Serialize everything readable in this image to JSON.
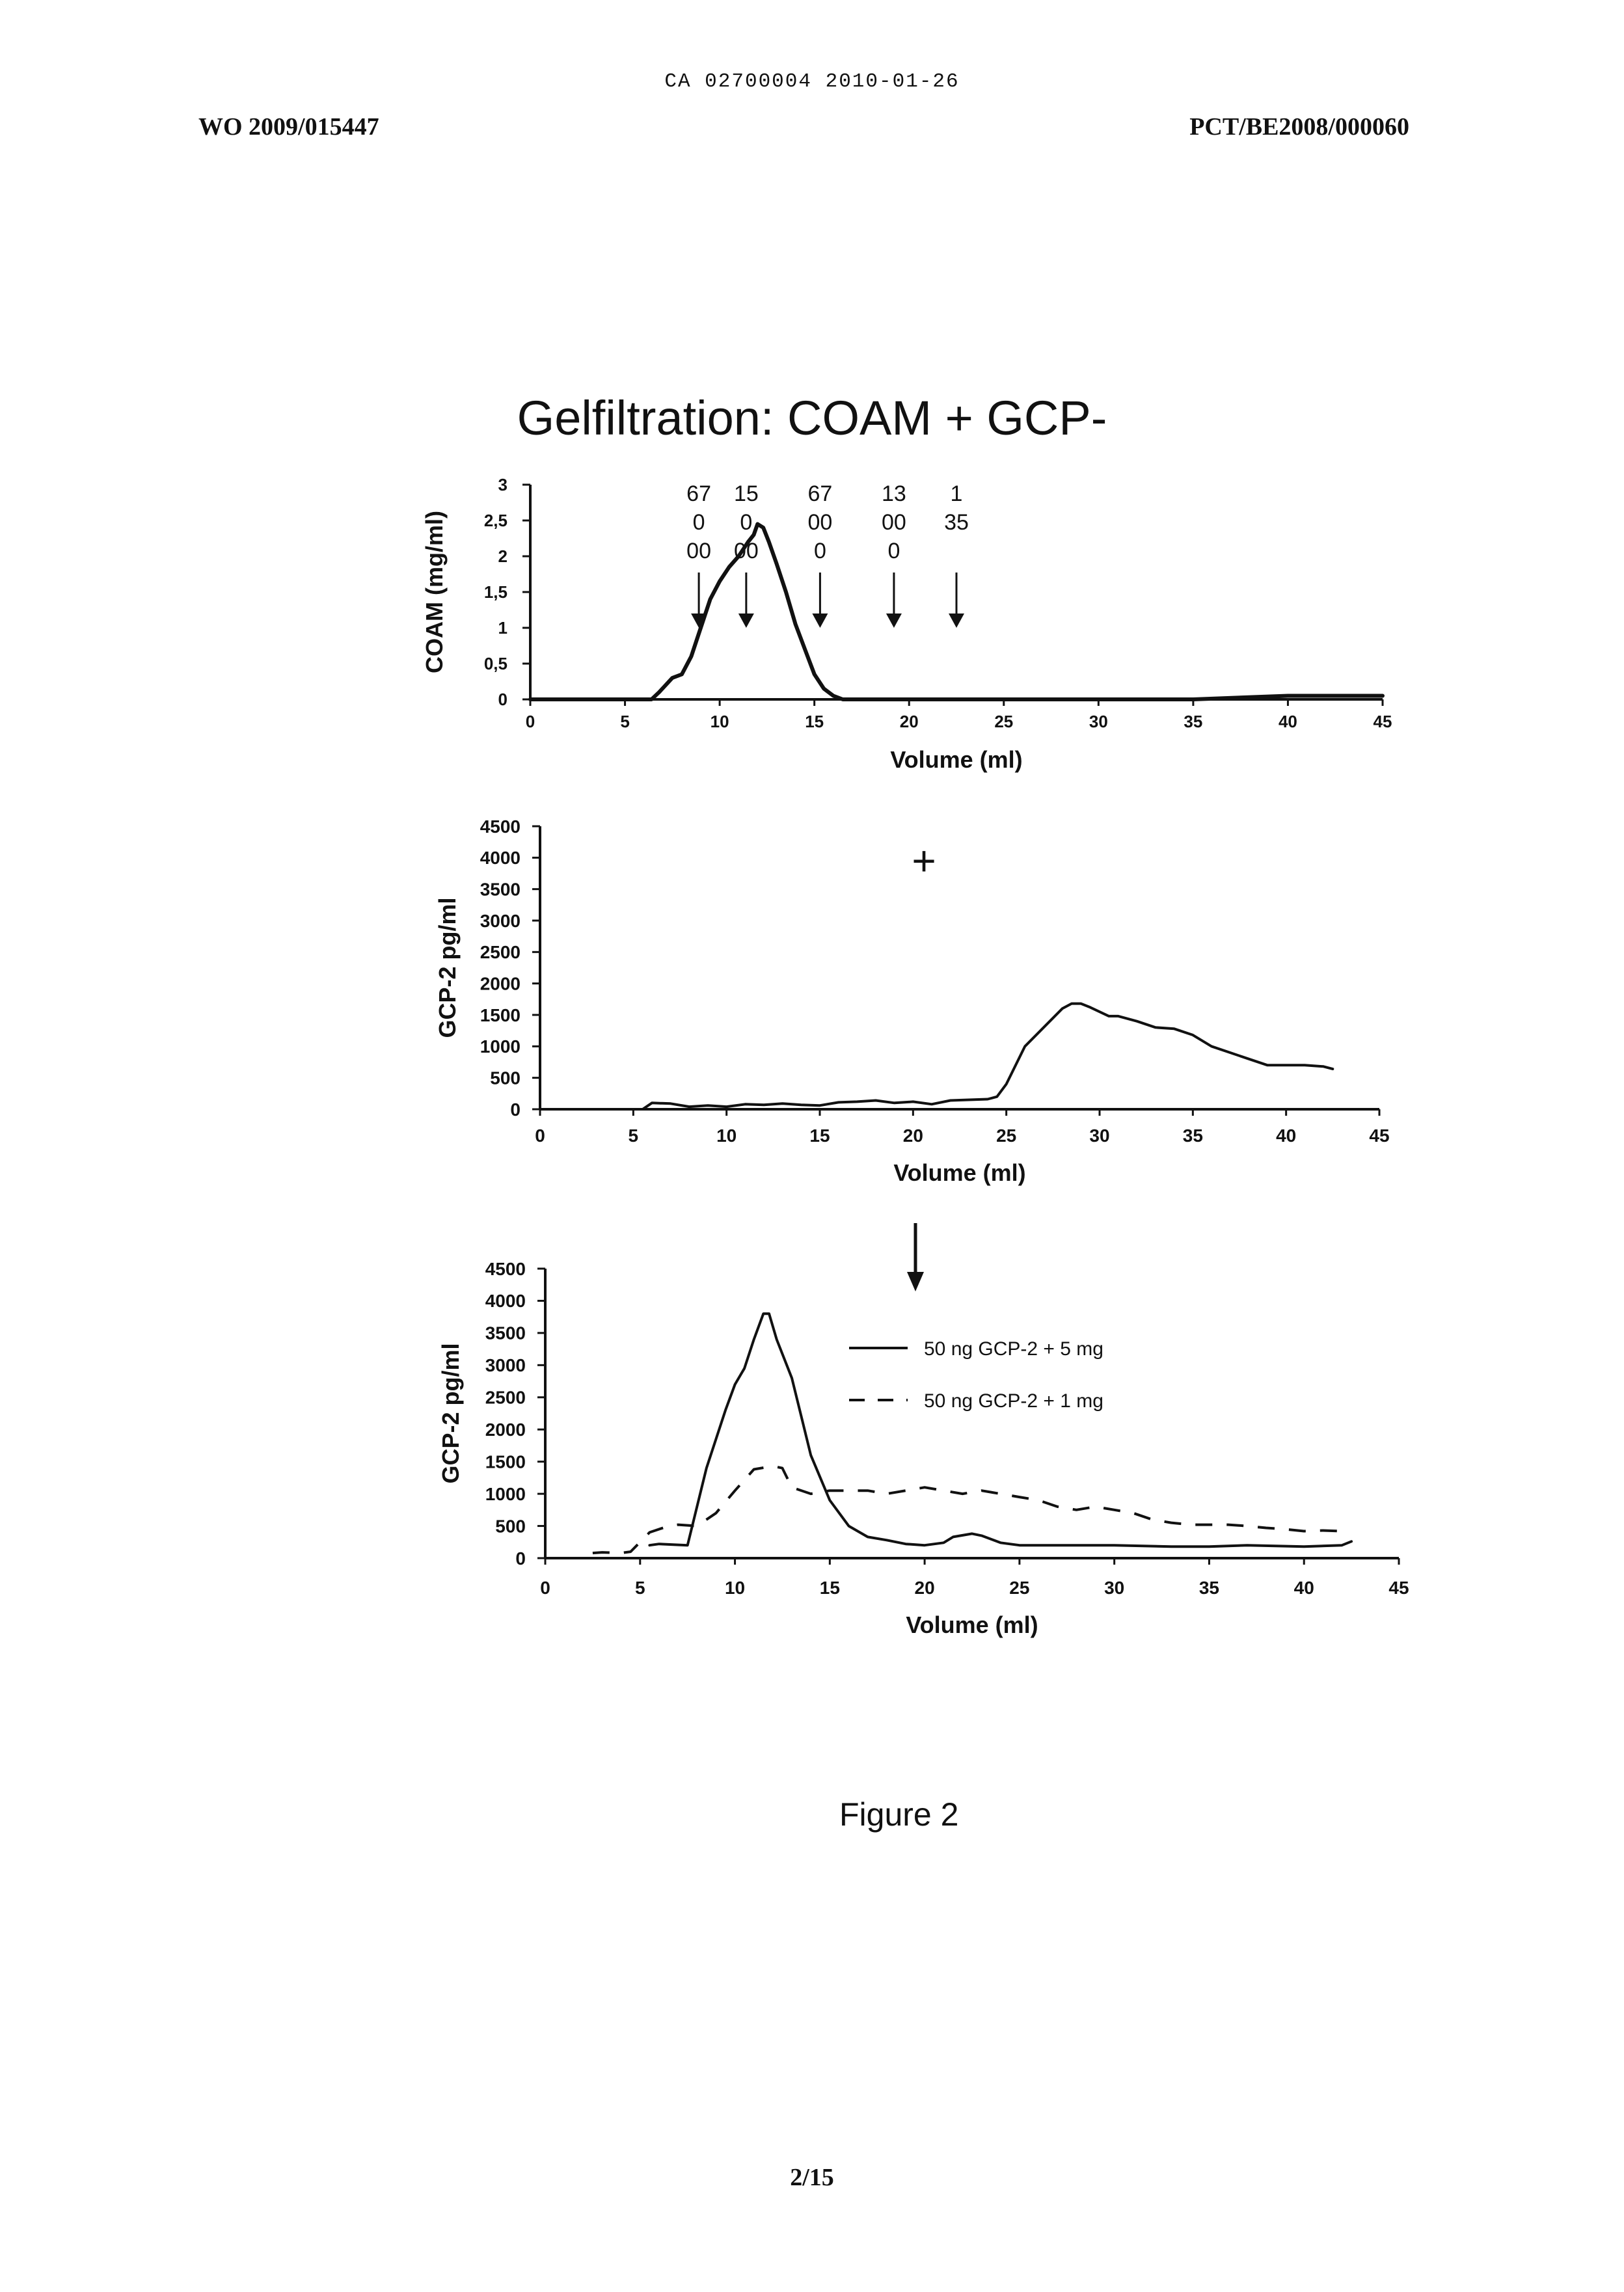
{
  "header": {
    "center": "CA 02700004 2010-01-26",
    "left": "WO 2009/015447",
    "right": "PCT/BE2008/000060"
  },
  "figure_title": "Gelfiltration: COAM + GCP-",
  "figure_caption": "Figure 2",
  "page_number": "2/15",
  "colors": {
    "line": "#111111",
    "axis": "#111111"
  },
  "chart_data": [
    {
      "type": "line",
      "title": "",
      "xlabel": "Volume (ml)",
      "ylabel": "COAM (mg/ml)",
      "xlim": [
        0,
        45
      ],
      "ylim": [
        0,
        3
      ],
      "x_ticks": [
        "0",
        "5",
        "10",
        "15",
        "20",
        "25",
        "30",
        "35",
        "40",
        "45"
      ],
      "y_ticks": [
        "0",
        "0,5",
        "1",
        "1,5",
        "2",
        "2,5",
        "3"
      ],
      "series": [
        {
          "style": "solid",
          "x": [
            0,
            6.4,
            6.8,
            7.5,
            8.0,
            8.5,
            9.0,
            9.5,
            10.0,
            10.5,
            11.0,
            11.5,
            11.8,
            12.0,
            12.3,
            12.6,
            13.0,
            13.5,
            14.0,
            14.5,
            15.0,
            15.5,
            16.0,
            16.5,
            20,
            25,
            30,
            35,
            40,
            45
          ],
          "y": [
            0,
            0,
            0.1,
            0.3,
            0.35,
            0.6,
            1.0,
            1.4,
            1.65,
            1.85,
            2.0,
            2.2,
            2.3,
            2.45,
            2.4,
            2.2,
            1.9,
            1.5,
            1.05,
            0.7,
            0.35,
            0.15,
            0.05,
            0,
            0,
            0,
            0,
            0,
            0.05,
            0.05
          ]
        }
      ],
      "annotations": [
        {
          "lines": [
            "67",
            "0",
            "00"
          ],
          "x": 8.9
        },
        {
          "lines": [
            "15",
            "0",
            "00"
          ],
          "x": 11.4
        },
        {
          "lines": [
            "67",
            "00",
            "0"
          ],
          "x": 15.3
        },
        {
          "lines": [
            "13",
            "00",
            "0"
          ],
          "x": 19.2
        },
        {
          "lines": [
            "1",
            "35"
          ],
          "x": 22.5
        }
      ]
    },
    {
      "type": "line",
      "title": "",
      "xlabel": "Volume (ml)",
      "ylabel": "GCP-2 pg/ml",
      "xlim": [
        0,
        45
      ],
      "ylim": [
        0,
        4500
      ],
      "x_ticks": [
        "0",
        "5",
        "10",
        "15",
        "20",
        "25",
        "30",
        "35",
        "40",
        "45"
      ],
      "y_ticks": [
        "0",
        "500",
        "1000",
        "1500",
        "2000",
        "2500",
        "3000",
        "3500",
        "4000",
        "4500"
      ],
      "marker_symbol": "+",
      "series": [
        {
          "style": "solid",
          "x": [
            0,
            5.5,
            6.0,
            7.0,
            8.0,
            9.0,
            10.0,
            11.0,
            12.0,
            13.0,
            14.0,
            15.0,
            16.0,
            17.0,
            18.0,
            19.0,
            20.0,
            21.0,
            22.0,
            23.0,
            24.0,
            24.5,
            25.0,
            25.5,
            26.0,
            27.0,
            28.0,
            28.5,
            29.0,
            29.5,
            30.0,
            30.5,
            31.0,
            32.0,
            33.0,
            34.0,
            35.0,
            36.0,
            37.0,
            38.0,
            39.0,
            40.0,
            41.0,
            42.0,
            42.5
          ],
          "y": [
            0,
            0,
            100,
            90,
            40,
            60,
            40,
            80,
            70,
            90,
            70,
            60,
            110,
            120,
            140,
            100,
            120,
            80,
            140,
            150,
            160,
            200,
            400,
            700,
            1000,
            1300,
            1600,
            1680,
            1680,
            1620,
            1550,
            1480,
            1480,
            1400,
            1300,
            1280,
            1180,
            1000,
            900,
            800,
            700,
            700,
            700,
            680,
            640
          ]
        }
      ]
    },
    {
      "type": "line",
      "title": "",
      "xlabel": "Volume (ml)",
      "ylabel": "GCP-2 pg/ml",
      "xlim": [
        0,
        45
      ],
      "ylim": [
        0,
        4500
      ],
      "x_ticks": [
        "0",
        "5",
        "10",
        "15",
        "20",
        "25",
        "30",
        "35",
        "40",
        "45"
      ],
      "y_ticks": [
        "0",
        "500",
        "1000",
        "1500",
        "2000",
        "2500",
        "3000",
        "3500",
        "4000",
        "4500"
      ],
      "legend_position": "top-right",
      "series": [
        {
          "name": "50 ng GCP-2 + 5 mg",
          "style": "solid",
          "x": [
            5.5,
            6.0,
            7.5,
            8.5,
            9.5,
            10.0,
            10.5,
            11.0,
            11.5,
            11.8,
            12.2,
            13.0,
            13.5,
            14.0,
            15.0,
            16.0,
            17.0,
            18.0,
            19.0,
            20.0,
            21.0,
            21.5,
            22.5,
            23.0,
            24.0,
            25.0,
            27.0,
            30.0,
            33.0,
            35.0,
            37.0,
            40.0,
            42.0,
            42.5
          ],
          "y": [
            200,
            220,
            200,
            1400,
            2300,
            2700,
            2950,
            3400,
            3800,
            3800,
            3400,
            2800,
            2200,
            1600,
            900,
            500,
            330,
            280,
            220,
            200,
            240,
            330,
            380,
            350,
            240,
            200,
            200,
            200,
            180,
            180,
            200,
            180,
            200,
            260
          ]
        },
        {
          "name": "50 ng GCP-2 + 1 mg",
          "style": "dashed",
          "x": [
            2.5,
            3.0,
            4.0,
            4.5,
            5.0,
            5.5,
            6.5,
            7.0,
            8.0,
            9.0,
            10.0,
            11.0,
            12.0,
            12.5,
            13.0,
            14.0,
            15.0,
            16.0,
            17.0,
            18.0,
            19.0,
            20.0,
            21.0,
            22.0,
            23.0,
            24.0,
            25.0,
            26.0,
            27.0,
            28.0,
            29.0,
            30.0,
            31.0,
            32.0,
            33.0,
            34.0,
            35.0,
            36.0,
            37.0,
            38.0,
            39.0,
            40.0,
            41.0,
            42.0
          ],
          "y": [
            80,
            90,
            80,
            100,
            250,
            400,
            500,
            520,
            500,
            700,
            1050,
            1380,
            1430,
            1400,
            1100,
            1000,
            1050,
            1050,
            1050,
            1000,
            1050,
            1100,
            1050,
            1000,
            1050,
            1000,
            950,
            900,
            800,
            750,
            800,
            750,
            700,
            600,
            550,
            520,
            520,
            520,
            500,
            470,
            450,
            420,
            430,
            420
          ]
        }
      ]
    }
  ]
}
